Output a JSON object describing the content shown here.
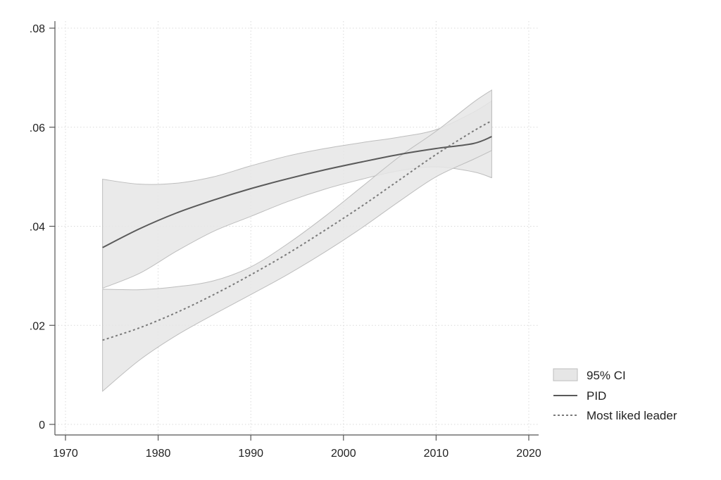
{
  "chart_data": {
    "type": "line",
    "title": "",
    "xlabel": "",
    "ylabel": "",
    "xlim": [
      1970,
      2020
    ],
    "ylim": [
      0,
      0.08
    ],
    "x_ticks": [
      1970,
      1980,
      1990,
      2000,
      2010,
      2020
    ],
    "x_tick_labels": [
      "1970",
      "1980",
      "1990",
      "2000",
      "2010",
      "2020"
    ],
    "y_ticks": [
      0,
      0.02,
      0.04,
      0.06,
      0.08
    ],
    "y_tick_labels": [
      "0",
      ".02",
      ".04",
      ".06",
      ".08"
    ],
    "grid": true,
    "legend_position": "right-bottom",
    "legend": {
      "ci_label": "95% CI",
      "pid_label": "PID",
      "leader_label": "Most liked leader"
    },
    "colors": {
      "ci_fill": "#e6e6e6",
      "ci_edge": "#bdbdbd",
      "pid_line": "#5a5a5a",
      "leader_line": "#7a7a7a",
      "grid": "#d9d9d9",
      "axis": "#555555"
    },
    "series": [
      {
        "name": "PID",
        "style": "solid",
        "x": [
          1974,
          1978,
          1982,
          1986,
          1990,
          1994,
          1998,
          2002,
          2006,
          2010,
          2014,
          2016
        ],
        "y": [
          0.0357,
          0.0395,
          0.0427,
          0.0453,
          0.0476,
          0.0496,
          0.0514,
          0.053,
          0.0545,
          0.0557,
          0.0567,
          0.0581
        ],
        "lower": [
          0.0275,
          0.0305,
          0.035,
          0.039,
          0.042,
          0.045,
          0.0475,
          0.0495,
          0.0512,
          0.052,
          0.051,
          0.0498
        ],
        "upper": [
          0.0495,
          0.0485,
          0.0487,
          0.05,
          0.0522,
          0.0542,
          0.0557,
          0.0569,
          0.058,
          0.0595,
          0.063,
          0.0653
        ]
      },
      {
        "name": "Most liked leader",
        "style": "dashed",
        "x": [
          1974,
          1978,
          1982,
          1986,
          1990,
          1994,
          1998,
          2002,
          2006,
          2010,
          2014,
          2016
        ],
        "y": [
          0.017,
          0.0195,
          0.0226,
          0.0262,
          0.0302,
          0.0345,
          0.0392,
          0.0441,
          0.0493,
          0.0545,
          0.0592,
          0.0613
        ],
        "lower": [
          0.0067,
          0.013,
          0.018,
          0.0222,
          0.0262,
          0.0303,
          0.0348,
          0.0397,
          0.045,
          0.05,
          0.0535,
          0.0553
        ],
        "upper": [
          0.0273,
          0.0272,
          0.0278,
          0.029,
          0.0318,
          0.0365,
          0.042,
          0.048,
          0.054,
          0.0592,
          0.065,
          0.0675
        ]
      }
    ]
  }
}
